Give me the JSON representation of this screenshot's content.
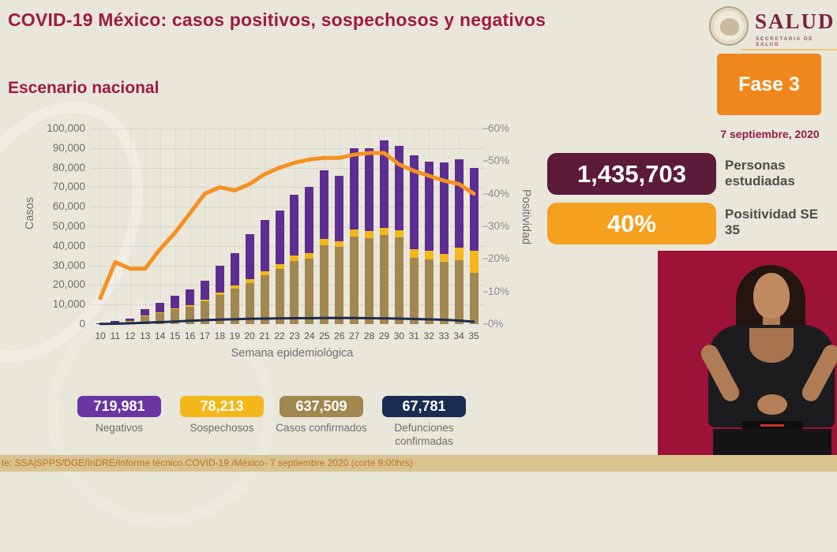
{
  "header": {
    "title": "COVID-19 México: casos positivos, sospechosos y negativos",
    "logo": {
      "name": "SALUD",
      "subtitle": "SECRETARIA DE SALUD"
    }
  },
  "section_title": "Escenario nacional",
  "phase_panel": {
    "phase": "Fase 3",
    "date": "7 septiembre, 2020"
  },
  "stats": {
    "studied": {
      "value": "1,435,703",
      "label": "Personas estudiadas",
      "color": "#5c1b38"
    },
    "positivity": {
      "value": "40%",
      "label": "Positividad SE 35",
      "color": "#f6a01f"
    }
  },
  "chart_data": {
    "type": "bar",
    "subtype": "stacked-bars-with-lines",
    "title": "Escenario nacional",
    "xlabel": "Semana epidemiológica",
    "ylabel_left": "Casos",
    "ylabel_right": "Positividad",
    "ylim_left": [
      0,
      100000
    ],
    "ylim_right": [
      0,
      60
    ],
    "grid": true,
    "yticks_left": [
      "0",
      "10,000",
      "20,000",
      "30,000",
      "40,000",
      "50,000",
      "60,000",
      "70,000",
      "80,000",
      "90,000",
      "100,000"
    ],
    "yticks_right": [
      "0%",
      "10%",
      "20%",
      "30%",
      "40%",
      "50%",
      "60%"
    ],
    "categories": [
      10,
      11,
      12,
      13,
      14,
      15,
      16,
      17,
      18,
      19,
      20,
      21,
      22,
      23,
      24,
      25,
      26,
      27,
      28,
      29,
      30,
      31,
      32,
      33,
      34,
      35
    ],
    "series": [
      {
        "name": "Casos confirmados",
        "type": "bar",
        "axis": "left",
        "color": "#a28750",
        "values": [
          250,
          700,
          1500,
          4000,
          5800,
          7700,
          8900,
          11500,
          14900,
          18300,
          21000,
          25000,
          28300,
          32400,
          33300,
          40200,
          39500,
          44900,
          44100,
          45500,
          44500,
          34000,
          33000,
          32000,
          32500,
          26300
        ]
      },
      {
        "name": "Sospechosos",
        "type": "bar",
        "axis": "left",
        "color": "#f4b71a",
        "values": [
          50,
          100,
          200,
          300,
          400,
          500,
          700,
          1000,
          1300,
          1500,
          1800,
          2000,
          2200,
          2800,
          3000,
          3200,
          3000,
          3500,
          3400,
          3500,
          3300,
          4500,
          4500,
          4000,
          6500,
          11400
        ]
      },
      {
        "name": "Negativos",
        "type": "bar",
        "axis": "left",
        "color": "#5e2d91",
        "values": [
          200,
          700,
          1300,
          3200,
          4800,
          6300,
          8000,
          9800,
          13500,
          16600,
          23000,
          26200,
          27400,
          30800,
          34000,
          35300,
          33300,
          41400,
          42600,
          44800,
          43300,
          47900,
          45500,
          46700,
          45400,
          42100
        ]
      },
      {
        "name": "Defunciones confirmadas",
        "type": "line",
        "axis": "left",
        "color": "#1b2c52",
        "values": [
          100,
          200,
          400,
          700,
          1000,
          1300,
          1700,
          2000,
          2300,
          2500,
          2700,
          2800,
          2900,
          3000,
          3000,
          3100,
          3200,
          3100,
          3000,
          2900,
          2800,
          2600,
          2400,
          2200,
          1800,
          1200
        ]
      },
      {
        "name": "Positividad",
        "type": "line",
        "axis": "right",
        "color": "#f59120",
        "values": [
          8,
          19,
          17,
          17,
          23,
          28,
          34,
          40,
          42,
          41,
          43,
          46,
          48,
          49.5,
          50.5,
          51,
          51,
          52,
          52.5,
          52.5,
          49,
          47,
          45.5,
          44,
          43,
          40
        ]
      }
    ]
  },
  "legend": {
    "items": [
      {
        "value": "719,981",
        "label": "Negativos",
        "color": "#6a35a3"
      },
      {
        "value": "78,213",
        "label": "Sospechosos",
        "color": "#f4b71a"
      },
      {
        "value": "637,509",
        "label": "Casos confirmados",
        "color": "#a28750"
      },
      {
        "value": "67,781",
        "label": "Defunciones confirmadas",
        "color": "#1b2c52"
      }
    ]
  },
  "footer": {
    "source": "te: SSA|SPPS/DGE/InDRE/Informe técnico.COVID-19 /México- 7 septiembre 2020 (corte 9:00hrs)"
  }
}
